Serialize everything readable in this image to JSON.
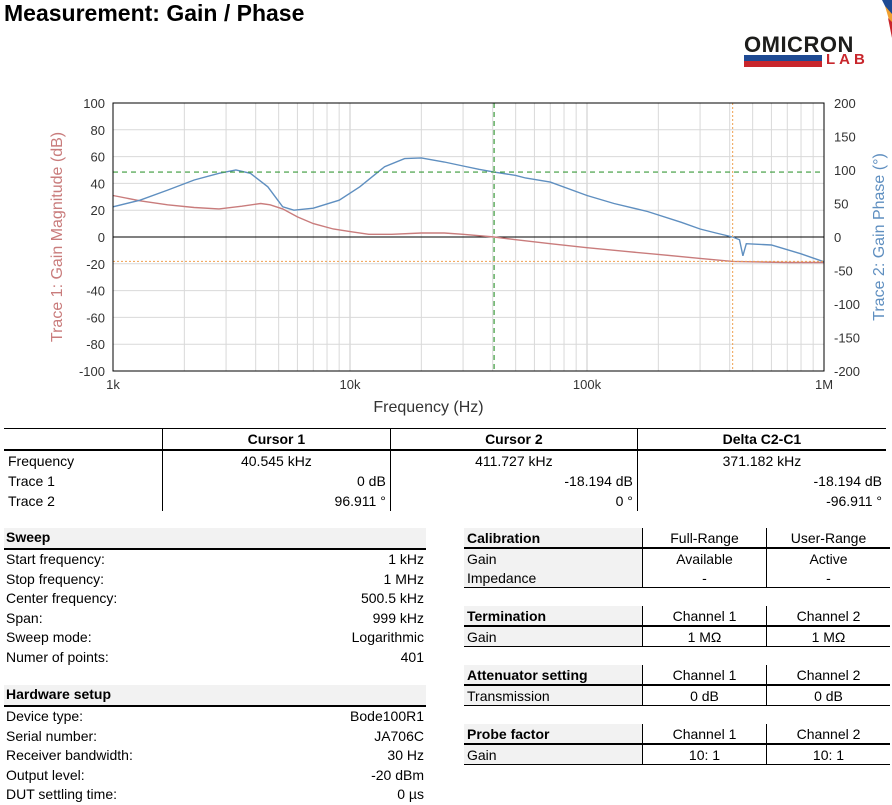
{
  "page": {
    "title": "Measurement: Gain / Phase"
  },
  "logo": {
    "line1": "OMICRON",
    "line2": "LAB"
  },
  "colors": {
    "trace1": "#c97c7c",
    "trace2": "#5f8fc0",
    "cursor1": "#3a9a3a",
    "cursor2": "#f0a050",
    "grid": "#d9d9d9"
  },
  "chart_data": {
    "type": "line",
    "xlabel": "Frequency (Hz)",
    "ylabel_left": "Trace 1: Gain Magnitude (dB)",
    "ylabel_right": "Trace 2: Gain Phase (°)",
    "x_scale": "log",
    "xlim": [
      1000,
      1000000
    ],
    "x_ticks": [
      1000,
      10000,
      100000,
      1000000
    ],
    "x_tick_labels": [
      "1k",
      "10k",
      "100k",
      "1M"
    ],
    "ylim_left": [
      -100,
      100
    ],
    "ylim_right": [
      -200,
      200
    ],
    "y_ticks_left": [
      100,
      80,
      60,
      40,
      20,
      0,
      -20,
      -40,
      -60,
      -80,
      -100
    ],
    "y_ticks_right": [
      200,
      150,
      100,
      50,
      0,
      -50,
      -100,
      -150,
      -200
    ],
    "grid": true,
    "series": [
      {
        "name": "Trace 1",
        "axis": "left",
        "x": [
          1000,
          1300,
          1700,
          2200,
          2800,
          3500,
          4200,
          4600,
          5200,
          6000,
          7000,
          8500,
          10000,
          12000,
          15000,
          20000,
          25000,
          30000,
          40545,
          50000,
          70000,
          100000,
          150000,
          200000,
          300000,
          411727,
          500000,
          700000,
          1000000
        ],
        "y": [
          31,
          27,
          24,
          22,
          21,
          23,
          25,
          24,
          21,
          15,
          10,
          6,
          4,
          2,
          2,
          3,
          3,
          2,
          0,
          -2,
          -5,
          -8,
          -11,
          -13,
          -16,
          -18.194,
          -18.5,
          -19,
          -19
        ]
      },
      {
        "name": "Trace 2",
        "axis": "right",
        "x": [
          1000,
          1300,
          1700,
          2200,
          2800,
          3300,
          3800,
          4500,
          5200,
          5800,
          7000,
          9000,
          11000,
          14000,
          17000,
          20000,
          25000,
          30000,
          35000,
          40545,
          50000,
          55000,
          70000,
          100000,
          130000,
          180000,
          250000,
          300000,
          350000,
          411727,
          440000,
          455000,
          470000,
          600000,
          800000,
          1000000
        ],
        "y": [
          45,
          55,
          70,
          85,
          95,
          100,
          95,
          75,
          45,
          40,
          43,
          55,
          75,
          105,
          117,
          118,
          112,
          106,
          101,
          96.911,
          92,
          88,
          82,
          62,
          50,
          38,
          22,
          12,
          6,
          0,
          -4,
          -28,
          -10,
          -12,
          -25,
          -37
        ]
      }
    ],
    "cursors": [
      {
        "name": "Cursor 1",
        "x": 40545,
        "y_left": 0,
        "y_right": 96.911
      },
      {
        "name": "Cursor 2",
        "x": 411727,
        "y_left": -18.194,
        "y_right": 0
      }
    ]
  },
  "cursor_table": {
    "headers": [
      "",
      "Cursor 1",
      "Cursor 2",
      "Delta C2-C1"
    ],
    "rows": [
      [
        "Frequency",
        "40.545 kHz",
        "411.727 kHz",
        "371.182 kHz"
      ],
      [
        "Trace 1",
        "0 dB",
        "-18.194 dB",
        "-18.194 dB"
      ],
      [
        "Trace 2",
        "96.911 °",
        "0 °",
        "-96.911 °"
      ]
    ]
  },
  "sweep": {
    "title": "Sweep",
    "rows": [
      [
        "Start frequency:",
        "1 kHz"
      ],
      [
        "Stop frequency:",
        "1 MHz"
      ],
      [
        "Center frequency:",
        "500.5 kHz"
      ],
      [
        "Span:",
        "999 kHz"
      ],
      [
        "Sweep mode:",
        "Logarithmic"
      ],
      [
        "Numer of points:",
        "401"
      ]
    ]
  },
  "hardware": {
    "title": "Hardware setup",
    "rows": [
      [
        "Device type:",
        "Bode100R1"
      ],
      [
        "Serial number:",
        "JA706C"
      ],
      [
        "Receiver bandwidth:",
        "30 Hz"
      ],
      [
        "Output level:",
        "-20 dBm"
      ],
      [
        "DUT settling time:",
        "0 µs"
      ]
    ]
  },
  "calibration": {
    "header": [
      "Calibration",
      "Full-Range",
      "User-Range"
    ],
    "rows": [
      [
        "Gain",
        "Available",
        "Active"
      ],
      [
        "Impedance",
        "-",
        "-"
      ]
    ]
  },
  "termination": {
    "header": [
      "Termination",
      "Channel 1",
      "Channel 2"
    ],
    "rows": [
      [
        "Gain",
        "1 MΩ",
        "1 MΩ"
      ]
    ]
  },
  "attenuator": {
    "header": [
      "Attenuator setting",
      "Channel 1",
      "Channel 2"
    ],
    "rows": [
      [
        "Transmission",
        "0 dB",
        "0 dB"
      ]
    ]
  },
  "probe": {
    "header": [
      "Probe factor",
      "Channel 1",
      "Channel 2"
    ],
    "rows": [
      [
        "Gain",
        "10: 1",
        "10: 1"
      ]
    ]
  }
}
